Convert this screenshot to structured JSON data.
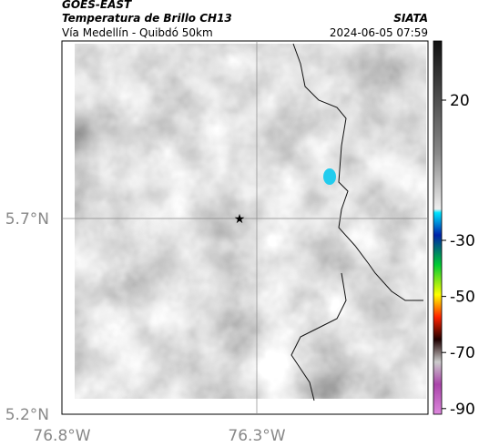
{
  "header": {
    "source": "GOES-EAST",
    "product": "Temperatura de Brillo CH13",
    "region": "Vía Medellín - Quibdó 50km",
    "agency": "SIATA",
    "datetime": "2024-06-05 07:59"
  },
  "map": {
    "lat_ticks": [
      "5.7°N",
      "5.2°N"
    ],
    "lon_ticks": [
      "76.8°W",
      "76.3°W"
    ]
  },
  "colorbar": {
    "ticks": [
      20,
      -30,
      -50,
      -70,
      -90
    ]
  }
}
